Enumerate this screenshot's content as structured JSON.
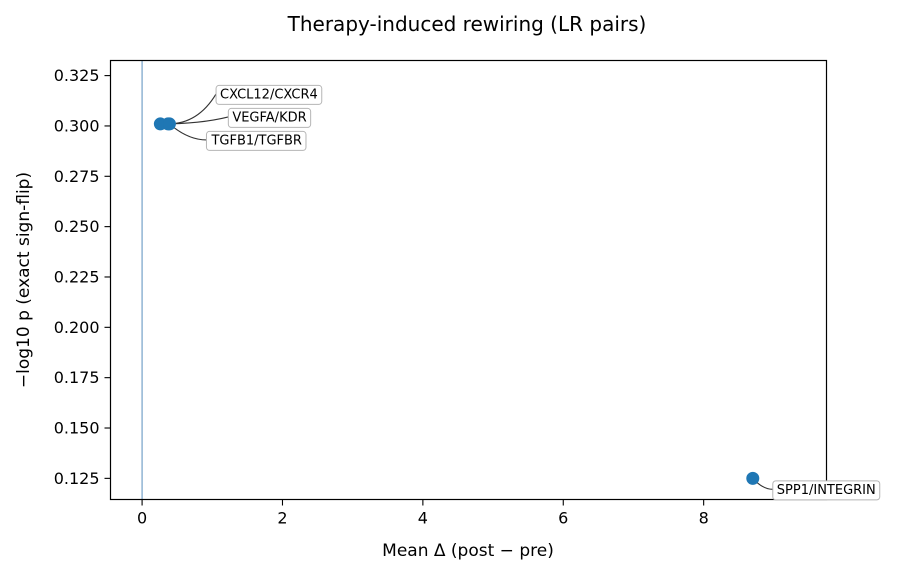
{
  "chart_data": {
    "type": "scatter",
    "title": "Therapy-induced rewiring (LR pairs)",
    "xlabel": "Mean Δ (post − pre)",
    "ylabel": "−log10 p (exact sign-flip)",
    "xlim": [
      -0.45,
      9.75
    ],
    "ylim": [
      0.1145,
      0.3325
    ],
    "xticks": [
      0,
      2,
      4,
      6,
      8
    ],
    "xtick_labels": [
      "0",
      "2",
      "4",
      "6",
      "8"
    ],
    "yticks": [
      0.125,
      0.15,
      0.175,
      0.2,
      0.225,
      0.25,
      0.275,
      0.3,
      0.325
    ],
    "ytick_labels": [
      "0.125",
      "0.150",
      "0.175",
      "0.200",
      "0.225",
      "0.250",
      "0.275",
      "0.300",
      "0.325"
    ],
    "vline_x": 0,
    "grid": false,
    "point_color": "#1f77b4",
    "points": [
      {
        "label": "CXCL12/CXCR4",
        "x": 0.37,
        "y": 0.301
      },
      {
        "label": "VEGFA/KDR",
        "x": 0.26,
        "y": 0.301
      },
      {
        "label": "TGFB1/TGFBR",
        "x": 0.39,
        "y": 0.301
      },
      {
        "label": "SPP1/INTEGRIN",
        "x": 8.7,
        "y": 0.125
      }
    ]
  }
}
